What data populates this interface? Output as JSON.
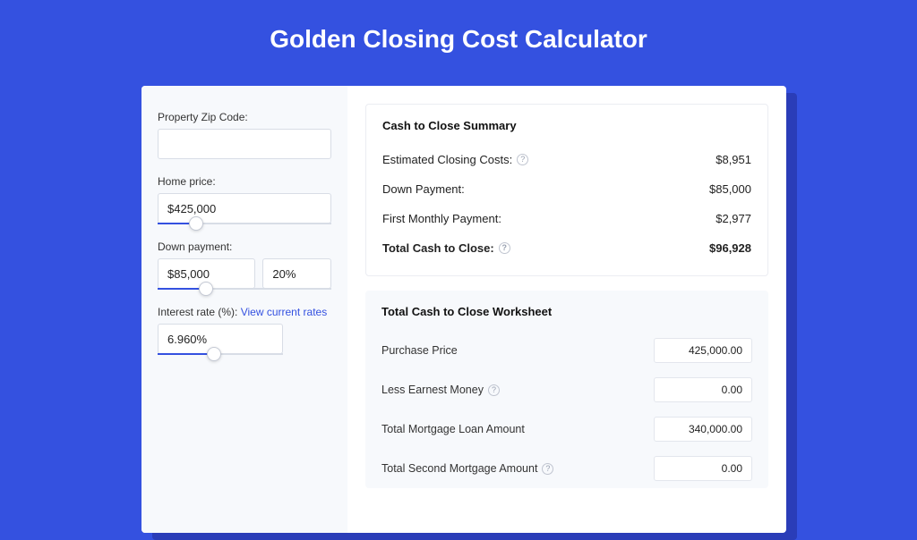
{
  "page": {
    "title": "Golden Closing Cost Calculator",
    "background_color": "#3451e0",
    "card_bg": "#ffffff",
    "panel_bg": "#f7f9fc",
    "accent": "#3451e0",
    "text_color": "#222222",
    "muted_border": "#d8dde6"
  },
  "form": {
    "zip": {
      "label": "Property Zip Code:",
      "value": ""
    },
    "home_price": {
      "label": "Home price:",
      "value": "$425,000",
      "slider_pct": 22
    },
    "down_payment": {
      "label": "Down payment:",
      "value": "$85,000",
      "pct": "20%",
      "slider_pct": 28
    },
    "interest": {
      "label": "Interest rate (%):",
      "link": "View current rates",
      "value": "6.960%",
      "slider_pct": 45
    }
  },
  "summary": {
    "title": "Cash to Close Summary",
    "rows": [
      {
        "label": "Estimated Closing Costs:",
        "help": true,
        "value": "$8,951"
      },
      {
        "label": "Down Payment:",
        "help": false,
        "value": "$85,000"
      },
      {
        "label": "First Monthly Payment:",
        "help": false,
        "value": "$2,977"
      }
    ],
    "total": {
      "label": "Total Cash to Close:",
      "help": true,
      "value": "$96,928"
    }
  },
  "worksheet": {
    "title": "Total Cash to Close Worksheet",
    "rows": [
      {
        "label": "Purchase Price",
        "help": false,
        "value": "425,000.00"
      },
      {
        "label": "Less Earnest Money",
        "help": true,
        "value": "0.00"
      },
      {
        "label": "Total Mortgage Loan Amount",
        "help": false,
        "value": "340,000.00"
      },
      {
        "label": "Total Second Mortgage Amount",
        "help": true,
        "value": "0.00"
      }
    ]
  }
}
